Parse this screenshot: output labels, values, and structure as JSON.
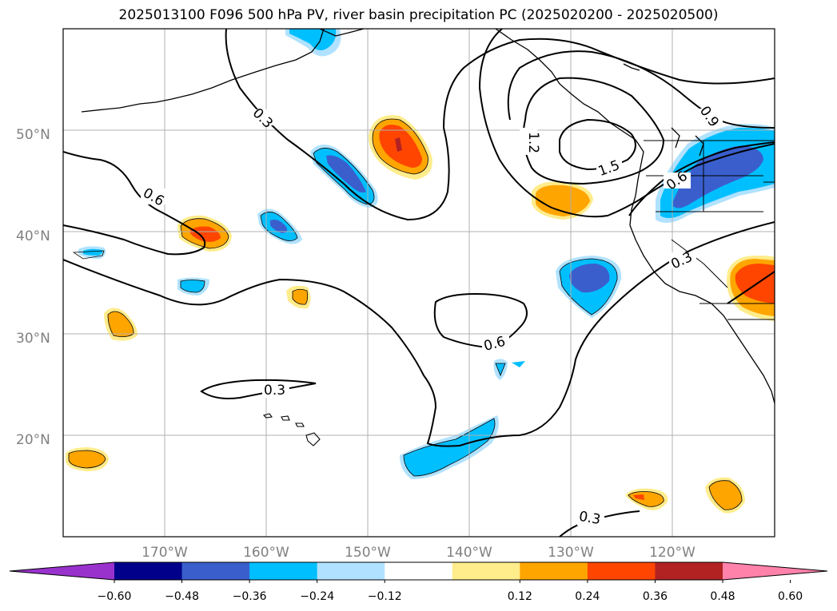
{
  "title": "2025013100 F096 500 hPa PV, river basin precipitation PC (2025020200 - 2025020500)",
  "map": {
    "extent": {
      "lon": [
        -180,
        -110
      ],
      "lat": [
        10,
        60
      ]
    },
    "lat_ticks": [
      {
        "value": 20,
        "label": "20°N"
      },
      {
        "value": 30,
        "label": "30°N"
      },
      {
        "value": 40,
        "label": "40°N"
      },
      {
        "value": 50,
        "label": "50°N"
      }
    ],
    "lon_ticks": [
      {
        "value": -170,
        "label": "170°W"
      },
      {
        "value": -160,
        "label": "160°W"
      },
      {
        "value": -150,
        "label": "150°W"
      },
      {
        "value": -140,
        "label": "140°W"
      },
      {
        "value": -130,
        "label": "130°W"
      },
      {
        "value": -120,
        "label": "120°W"
      }
    ],
    "contour_labels": [
      "0.3",
      "0.6",
      "0.9",
      "1.2",
      "1.5"
    ],
    "gridlines": true
  },
  "colorbar": {
    "ticks": [
      "−0.60",
      "−0.48",
      "−0.36",
      "−0.24",
      "−0.12",
      "0.12",
      "0.24",
      "0.36",
      "0.48",
      "0.60"
    ],
    "colors": [
      "#9932cc",
      "#00008b",
      "#3a5fcd",
      "#00bfff",
      "#b0e2ff",
      "#ffffff",
      "#ffec8b",
      "#ffa500",
      "#ff4500",
      "#b22222",
      "#ff82ab"
    ]
  }
}
